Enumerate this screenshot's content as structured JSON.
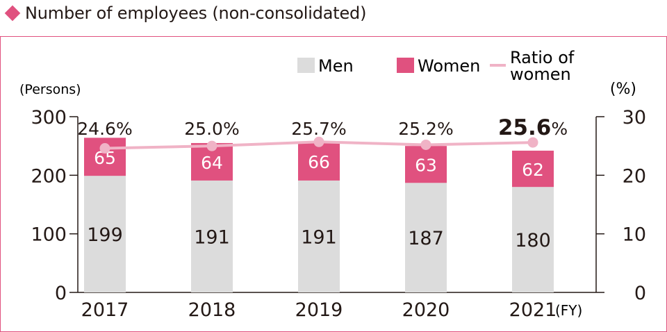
{
  "heading": "Number of employees (non-consolidated)",
  "colors": {
    "accent": "#e0517f",
    "men": "#dcdcdc",
    "women": "#e0517f",
    "ratio": "#f0b3c6"
  },
  "chart_data": {
    "type": "bar",
    "stacked": true,
    "title": "Number of employees (non-consolidated)",
    "categories": [
      "2017",
      "2018",
      "2019",
      "2020",
      "2021"
    ],
    "xlabel": "(FY)",
    "ylabel_left": "(Persons)",
    "ylabel_right": "(%)",
    "ylim_left": [
      0,
      300
    ],
    "ylim_right": [
      0,
      30
    ],
    "yticks_left": [
      "0",
      "100",
      "200",
      "300"
    ],
    "yticks_right": [
      "0",
      "10",
      "20",
      "30"
    ],
    "grid": false,
    "legend_position": "top-right",
    "legend": [
      "Men",
      "Women",
      "Ratio of women"
    ],
    "series": [
      {
        "name": "Men",
        "values": [
          199,
          191,
          191,
          187,
          180
        ],
        "labels": [
          "199",
          "191",
          "191",
          "187",
          "180"
        ]
      },
      {
        "name": "Women",
        "values": [
          65,
          64,
          66,
          63,
          62
        ],
        "labels": [
          "65",
          "64",
          "66",
          "63",
          "62"
        ]
      },
      {
        "name": "Ratio of women",
        "axis": "right",
        "values": [
          24.6,
          25.0,
          25.7,
          25.2,
          25.6
        ],
        "label_numbers": [
          "24.6",
          "25.0",
          "25.7",
          "25.2",
          "25.6"
        ],
        "label_unit": "%",
        "highlight_index": 4
      }
    ]
  }
}
